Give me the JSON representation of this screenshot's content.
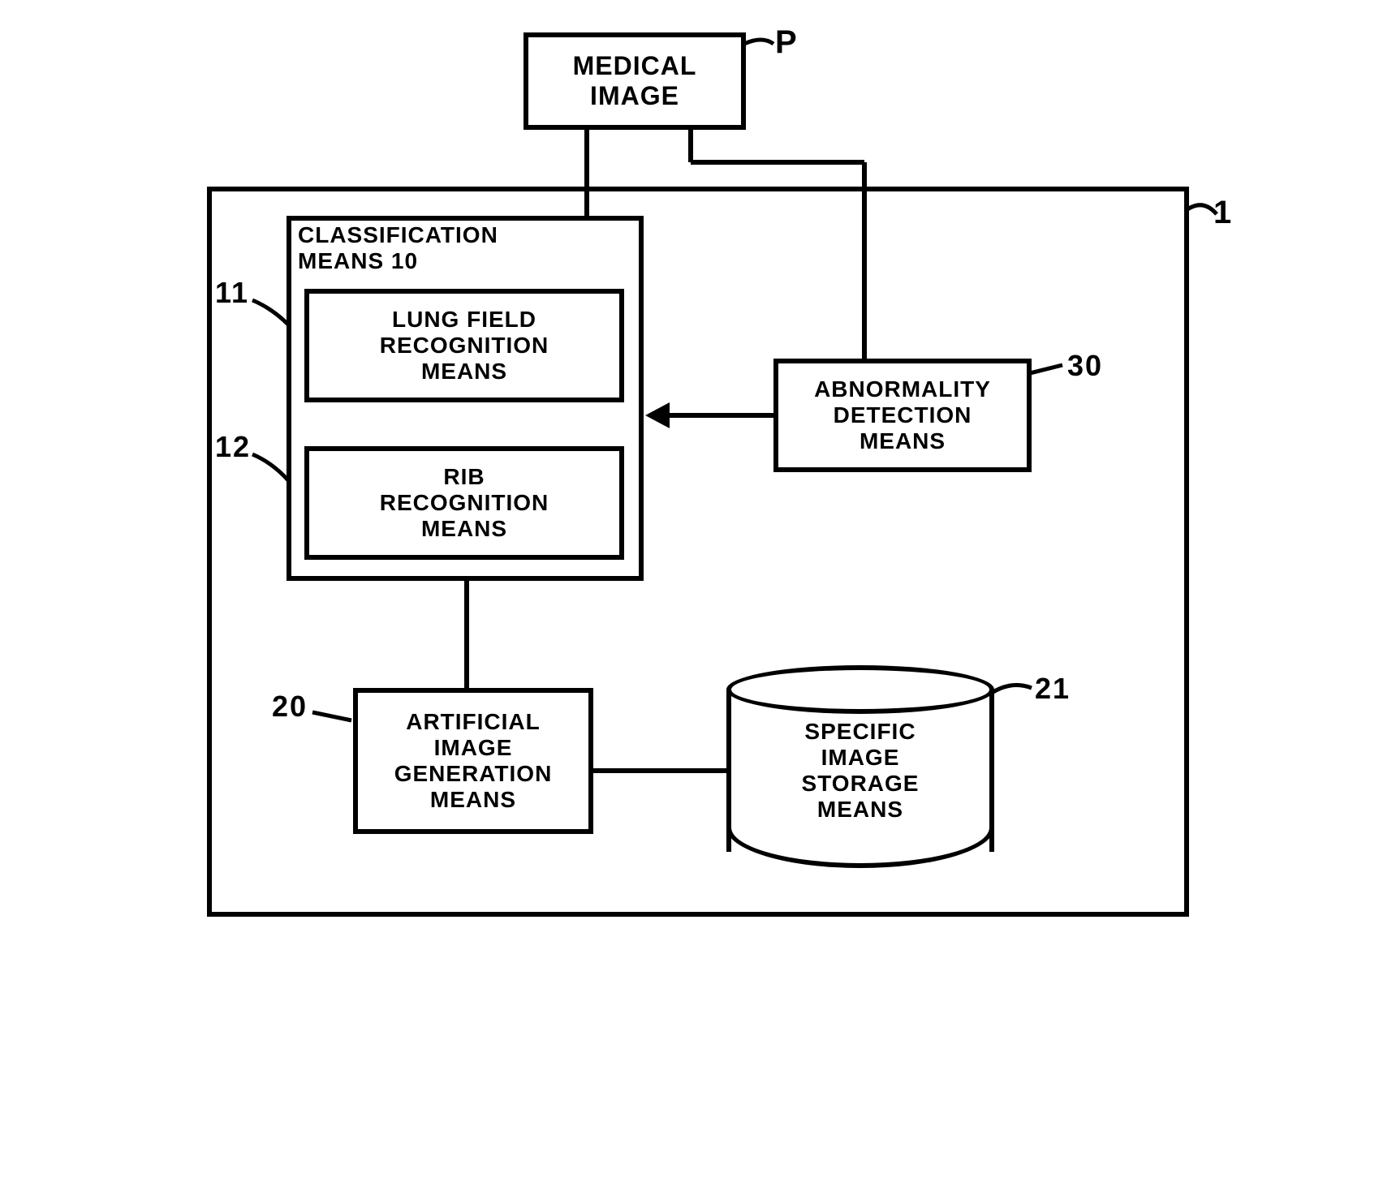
{
  "type": "flowchart",
  "background_color": "#ffffff",
  "stroke_color": "#000000",
  "stroke_width": 6,
  "font_family": "Arial",
  "nodes": {
    "input": {
      "id": "P",
      "label": "MEDICAL\nIMAGE",
      "fontsize": 32
    },
    "system_container": {
      "id": "1",
      "label": ""
    },
    "classification_container": {
      "id": "10",
      "title": "CLASSIFICATION\nMEANS 10",
      "fontsize": 28
    },
    "lung_field": {
      "id": "11",
      "label": "LUNG FIELD\nRECOGNITION\nMEANS",
      "fontsize": 28
    },
    "rib": {
      "id": "12",
      "label": "RIB\nRECOGNITION\nMEANS",
      "fontsize": 28
    },
    "abnormality": {
      "id": "30",
      "label": "ABNORMALITY\nDETECTION\nMEANS",
      "fontsize": 28
    },
    "artificial": {
      "id": "20",
      "label": "ARTIFICIAL\nIMAGE\nGENERATION\nMEANS",
      "fontsize": 28
    },
    "storage": {
      "id": "21",
      "label": "SPECIFIC\nIMAGE\nSTORAGE\nMEANS",
      "fontsize": 28
    }
  },
  "edges": [
    {
      "from": "P",
      "to": "10",
      "arrow": false
    },
    {
      "from": "P",
      "to": "30",
      "arrow": false
    },
    {
      "from": "30",
      "to": "10",
      "arrow": true
    },
    {
      "from": "10",
      "to": "20",
      "arrow": false
    },
    {
      "from": "20",
      "to": "21",
      "arrow": false
    }
  ],
  "node_labels": {
    "P": "P",
    "1": "1",
    "10_lead": "11",
    "11": "11",
    "12": "12",
    "20": "20",
    "21": "21",
    "30": "30"
  }
}
